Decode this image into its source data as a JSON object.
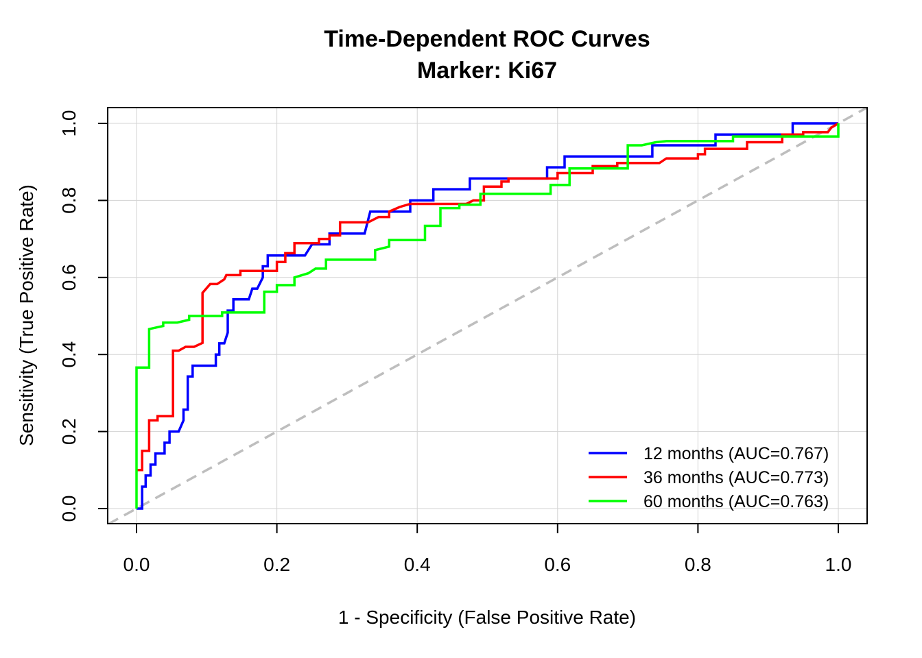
{
  "chart_data": {
    "type": "line",
    "title": "Time-Dependent ROC Curves",
    "subtitle": "Marker: Ki67",
    "xlabel": "1 - Specificity (False Positive Rate)",
    "ylabel": "Sensitivity (True Positive Rate)",
    "xlim": [
      0,
      1
    ],
    "ylim": [
      0,
      1
    ],
    "x_ticks": [
      "0.0",
      "0.2",
      "0.4",
      "0.6",
      "0.8",
      "1.0"
    ],
    "y_ticks": [
      "0.0",
      "0.2",
      "0.4",
      "0.6",
      "0.8",
      "1.0"
    ],
    "grid": true,
    "legend_position": "bottom-right",
    "reference_line": {
      "from": [
        0,
        0
      ],
      "to": [
        1,
        1
      ],
      "color": "#bebebe",
      "style": "dashed"
    },
    "series": [
      {
        "name": "12 months (AUC=0.767)",
        "color": "#0000ff",
        "points": [
          [
            0,
            0
          ],
          [
            0.008,
            0
          ],
          [
            0.008,
            0.057
          ],
          [
            0.013,
            0.057
          ],
          [
            0.013,
            0.086
          ],
          [
            0.02,
            0.086
          ],
          [
            0.02,
            0.114
          ],
          [
            0.027,
            0.114
          ],
          [
            0.027,
            0.143
          ],
          [
            0.04,
            0.143
          ],
          [
            0.04,
            0.171
          ],
          [
            0.047,
            0.171
          ],
          [
            0.047,
            0.2
          ],
          [
            0.06,
            0.2
          ],
          [
            0.067,
            0.229
          ],
          [
            0.067,
            0.257
          ],
          [
            0.073,
            0.257
          ],
          [
            0.073,
            0.343
          ],
          [
            0.08,
            0.343
          ],
          [
            0.08,
            0.371
          ],
          [
            0.113,
            0.371
          ],
          [
            0.113,
            0.4
          ],
          [
            0.118,
            0.4
          ],
          [
            0.118,
            0.429
          ],
          [
            0.125,
            0.429
          ],
          [
            0.13,
            0.457
          ],
          [
            0.13,
            0.514
          ],
          [
            0.138,
            0.514
          ],
          [
            0.138,
            0.543
          ],
          [
            0.16,
            0.543
          ],
          [
            0.165,
            0.571
          ],
          [
            0.172,
            0.571
          ],
          [
            0.18,
            0.6
          ],
          [
            0.18,
            0.629
          ],
          [
            0.187,
            0.629
          ],
          [
            0.187,
            0.657
          ],
          [
            0.24,
            0.657
          ],
          [
            0.25,
            0.686
          ],
          [
            0.275,
            0.686
          ],
          [
            0.275,
            0.714
          ],
          [
            0.325,
            0.714
          ],
          [
            0.333,
            0.771
          ],
          [
            0.39,
            0.771
          ],
          [
            0.39,
            0.8
          ],
          [
            0.423,
            0.8
          ],
          [
            0.423,
            0.829
          ],
          [
            0.475,
            0.829
          ],
          [
            0.475,
            0.857
          ],
          [
            0.585,
            0.857
          ],
          [
            0.585,
            0.886
          ],
          [
            0.61,
            0.886
          ],
          [
            0.61,
            0.914
          ],
          [
            0.735,
            0.914
          ],
          [
            0.735,
            0.943
          ],
          [
            0.825,
            0.943
          ],
          [
            0.825,
            0.971
          ],
          [
            0.935,
            0.971
          ],
          [
            0.935,
            1.0
          ],
          [
            1.0,
            1.0
          ]
        ]
      },
      {
        "name": "36 months (AUC=0.773)",
        "color": "#ff0000",
        "points": [
          [
            0,
            0.1
          ],
          [
            0.008,
            0.1
          ],
          [
            0.008,
            0.15
          ],
          [
            0.018,
            0.15
          ],
          [
            0.018,
            0.229
          ],
          [
            0.03,
            0.229
          ],
          [
            0.03,
            0.24
          ],
          [
            0.052,
            0.24
          ],
          [
            0.052,
            0.41
          ],
          [
            0.06,
            0.41
          ],
          [
            0.07,
            0.42
          ],
          [
            0.082,
            0.42
          ],
          [
            0.094,
            0.43
          ],
          [
            0.094,
            0.56
          ],
          [
            0.105,
            0.583
          ],
          [
            0.115,
            0.583
          ],
          [
            0.125,
            0.595
          ],
          [
            0.128,
            0.606
          ],
          [
            0.148,
            0.606
          ],
          [
            0.148,
            0.617
          ],
          [
            0.2,
            0.617
          ],
          [
            0.2,
            0.64
          ],
          [
            0.212,
            0.64
          ],
          [
            0.212,
            0.663
          ],
          [
            0.225,
            0.663
          ],
          [
            0.225,
            0.689
          ],
          [
            0.26,
            0.689
          ],
          [
            0.26,
            0.7
          ],
          [
            0.275,
            0.7
          ],
          [
            0.275,
            0.709
          ],
          [
            0.29,
            0.709
          ],
          [
            0.29,
            0.743
          ],
          [
            0.33,
            0.743
          ],
          [
            0.345,
            0.757
          ],
          [
            0.36,
            0.757
          ],
          [
            0.36,
            0.771
          ],
          [
            0.375,
            0.783
          ],
          [
            0.39,
            0.791
          ],
          [
            0.47,
            0.791
          ],
          [
            0.48,
            0.8
          ],
          [
            0.495,
            0.8
          ],
          [
            0.495,
            0.836
          ],
          [
            0.52,
            0.836
          ],
          [
            0.52,
            0.849
          ],
          [
            0.53,
            0.849
          ],
          [
            0.53,
            0.857
          ],
          [
            0.6,
            0.857
          ],
          [
            0.6,
            0.871
          ],
          [
            0.65,
            0.871
          ],
          [
            0.65,
            0.889
          ],
          [
            0.685,
            0.889
          ],
          [
            0.685,
            0.897
          ],
          [
            0.745,
            0.897
          ],
          [
            0.755,
            0.909
          ],
          [
            0.8,
            0.909
          ],
          [
            0.8,
            0.92
          ],
          [
            0.81,
            0.92
          ],
          [
            0.81,
            0.934
          ],
          [
            0.87,
            0.934
          ],
          [
            0.87,
            0.951
          ],
          [
            0.92,
            0.951
          ],
          [
            0.92,
            0.971
          ],
          [
            0.95,
            0.971
          ],
          [
            0.95,
            0.977
          ],
          [
            0.985,
            0.977
          ],
          [
            0.99,
            0.989
          ],
          [
            1.0,
            1.0
          ]
        ]
      },
      {
        "name": "60 months (AUC=0.763)",
        "color": "#00ff00",
        "points": [
          [
            0,
            0
          ],
          [
            0,
            0.366
          ],
          [
            0.018,
            0.366
          ],
          [
            0.018,
            0.466
          ],
          [
            0.038,
            0.474
          ],
          [
            0.038,
            0.483
          ],
          [
            0.058,
            0.483
          ],
          [
            0.075,
            0.49
          ],
          [
            0.075,
            0.5
          ],
          [
            0.122,
            0.5
          ],
          [
            0.122,
            0.509
          ],
          [
            0.182,
            0.509
          ],
          [
            0.182,
            0.563
          ],
          [
            0.2,
            0.563
          ],
          [
            0.2,
            0.58
          ],
          [
            0.225,
            0.58
          ],
          [
            0.225,
            0.6
          ],
          [
            0.245,
            0.611
          ],
          [
            0.255,
            0.623
          ],
          [
            0.27,
            0.623
          ],
          [
            0.27,
            0.646
          ],
          [
            0.34,
            0.646
          ],
          [
            0.34,
            0.671
          ],
          [
            0.36,
            0.68
          ],
          [
            0.36,
            0.697
          ],
          [
            0.411,
            0.697
          ],
          [
            0.411,
            0.734
          ],
          [
            0.433,
            0.734
          ],
          [
            0.433,
            0.78
          ],
          [
            0.46,
            0.78
          ],
          [
            0.46,
            0.789
          ],
          [
            0.49,
            0.789
          ],
          [
            0.49,
            0.817
          ],
          [
            0.59,
            0.817
          ],
          [
            0.59,
            0.84
          ],
          [
            0.617,
            0.84
          ],
          [
            0.617,
            0.883
          ],
          [
            0.7,
            0.883
          ],
          [
            0.7,
            0.943
          ],
          [
            0.72,
            0.943
          ],
          [
            0.74,
            0.951
          ],
          [
            0.755,
            0.954
          ],
          [
            0.85,
            0.954
          ],
          [
            0.85,
            0.966
          ],
          [
            1.0,
            0.966
          ],
          [
            1.0,
            1.0
          ]
        ]
      }
    ]
  }
}
